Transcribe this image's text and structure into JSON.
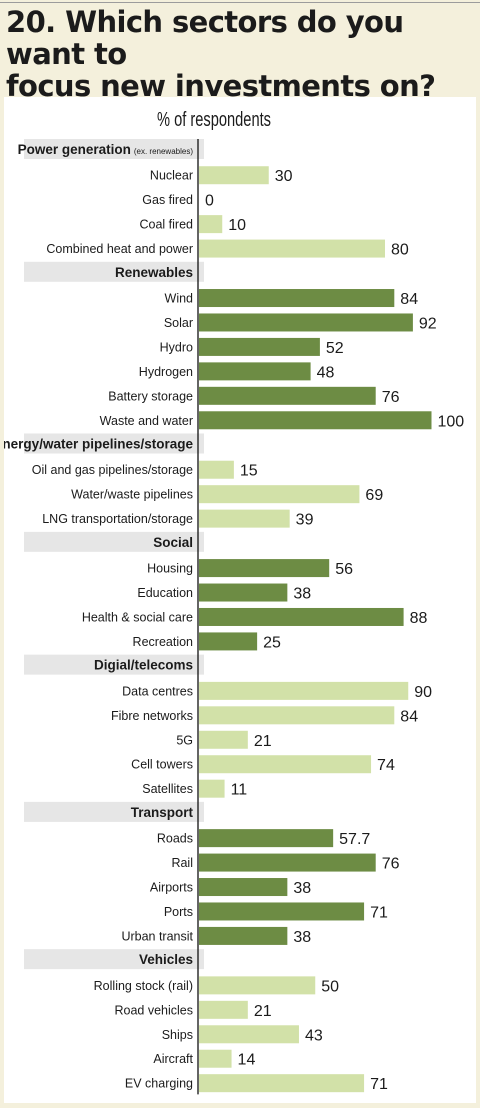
{
  "title": "20. Which sectors do you want to\nfocus new investments on? (%)",
  "colors": {
    "background": "#f4f0dc",
    "panel": "#ffffff",
    "group_band": "#e6e6e6",
    "bar_light": "#d2e1a8",
    "bar_dark": "#6d8c44",
    "text": "#1b1b1b"
  },
  "chart_data": {
    "type": "bar",
    "orientation": "horizontal",
    "title": "20. Which sectors do you want to focus new investments on? (%)",
    "subtitle": "% of respondents",
    "xlim": [
      0,
      100
    ],
    "grid": false,
    "groups": [
      {
        "name": "Power generation",
        "name_suffix": "(ex. renewables)",
        "shade": "light",
        "items": [
          {
            "label": "Nuclear",
            "value": 30,
            "value_label": "30"
          },
          {
            "label": "Gas fired",
            "value": 0,
            "value_label": "0"
          },
          {
            "label": "Coal fired",
            "value": 10,
            "value_label": "10"
          },
          {
            "label": "Combined heat and power",
            "value": 80,
            "value_label": "80"
          }
        ]
      },
      {
        "name": "Renewables",
        "shade": "dark",
        "items": [
          {
            "label": "Wind",
            "value": 84,
            "value_label": "84"
          },
          {
            "label": "Solar",
            "value": 92,
            "value_label": "92"
          },
          {
            "label": "Hydro",
            "value": 52,
            "value_label": "52"
          },
          {
            "label": "Hydrogen",
            "value": 48,
            "value_label": "48"
          },
          {
            "label": "Battery storage",
            "value": 76,
            "value_label": "76"
          },
          {
            "label": "Waste and water",
            "value": 100,
            "value_label": "100"
          }
        ]
      },
      {
        "name": "Energy/water pipelines/storage",
        "shade": "light",
        "items": [
          {
            "label": "Oil and gas pipelines/storage",
            "value": 15,
            "value_label": "15"
          },
          {
            "label": "Water/waste pipelines",
            "value": 69,
            "value_label": "69"
          },
          {
            "label": "LNG transportation/storage",
            "value": 39,
            "value_label": "39"
          }
        ]
      },
      {
        "name": "Social",
        "shade": "dark",
        "items": [
          {
            "label": "Housing",
            "value": 56,
            "value_label": "56"
          },
          {
            "label": "Education",
            "value": 38,
            "value_label": "38"
          },
          {
            "label": "Health & social care",
            "value": 88,
            "value_label": "88"
          },
          {
            "label": "Recreation",
            "value": 25,
            "value_label": "25"
          }
        ]
      },
      {
        "name": "Digial/telecoms",
        "shade": "light",
        "items": [
          {
            "label": "Data centres",
            "value": 90,
            "value_label": "90"
          },
          {
            "label": "Fibre networks",
            "value": 84,
            "value_label": "84"
          },
          {
            "label": "5G",
            "value": 21,
            "value_label": "21"
          },
          {
            "label": "Cell towers",
            "value": 74,
            "value_label": "74"
          },
          {
            "label": "Satellites",
            "value": 11,
            "value_label": "11"
          }
        ]
      },
      {
        "name": "Transport",
        "shade": "dark",
        "items": [
          {
            "label": "Roads",
            "value": 57.7,
            "value_label": "57.7"
          },
          {
            "label": "Rail",
            "value": 76,
            "value_label": "76"
          },
          {
            "label": "Airports",
            "value": 38,
            "value_label": "38"
          },
          {
            "label": "Ports",
            "value": 71,
            "value_label": "71"
          },
          {
            "label": "Urban transit",
            "value": 38,
            "value_label": "38"
          }
        ]
      },
      {
        "name": "Vehicles",
        "shade": "light",
        "items": [
          {
            "label": "Rolling stock (rail)",
            "value": 50,
            "value_label": "50"
          },
          {
            "label": "Road vehicles",
            "value": 21,
            "value_label": "21"
          },
          {
            "label": "Ships",
            "value": 43,
            "value_label": "43"
          },
          {
            "label": "Aircraft",
            "value": 14,
            "value_label": "14"
          },
          {
            "label": "EV charging",
            "value": 71,
            "value_label": "71"
          }
        ]
      }
    ]
  }
}
